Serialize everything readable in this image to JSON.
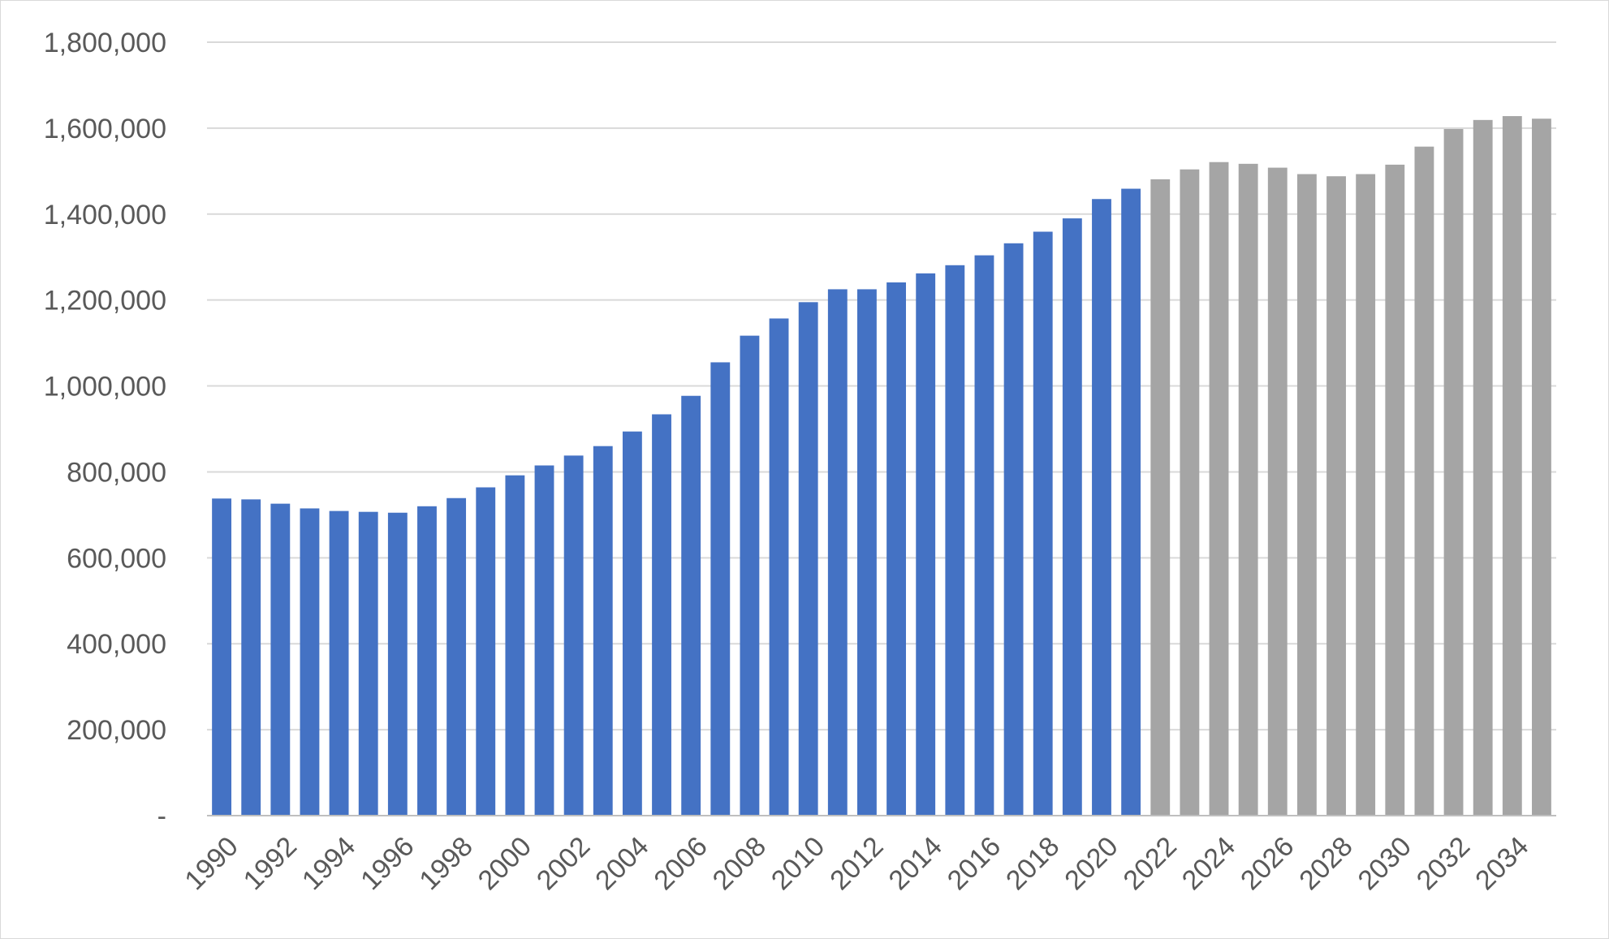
{
  "chart_data": {
    "type": "bar",
    "categories": [
      "1990",
      "1991",
      "1992",
      "1993",
      "1994",
      "1995",
      "1996",
      "1997",
      "1998",
      "1999",
      "2000",
      "2001",
      "2002",
      "2003",
      "2004",
      "2005",
      "2006",
      "2007",
      "2008",
      "2009",
      "2010",
      "2011",
      "2012",
      "2013",
      "2014",
      "2015",
      "2016",
      "2017",
      "2018",
      "2019",
      "2020",
      "2021",
      "2022",
      "2023",
      "2024",
      "2025",
      "2026",
      "2027",
      "2028",
      "2029",
      "2030",
      "2031",
      "2032",
      "2033",
      "2034",
      "2035"
    ],
    "x_tick_labels": [
      "1990",
      "1992",
      "1994",
      "1996",
      "1998",
      "2000",
      "2002",
      "2004",
      "2006",
      "2008",
      "2010",
      "2012",
      "2014",
      "2016",
      "2018",
      "2020",
      "2022",
      "2024",
      "2026",
      "2028",
      "2030",
      "2032",
      "2034"
    ],
    "values": [
      738000,
      736000,
      726000,
      715000,
      709000,
      707000,
      705000,
      720000,
      739000,
      764000,
      792000,
      815000,
      838000,
      860000,
      894000,
      934000,
      977000,
      1055000,
      1117000,
      1157000,
      1195000,
      1225000,
      1225000,
      1241000,
      1262000,
      1281000,
      1304000,
      1332000,
      1359000,
      1390000,
      1435000,
      1459000,
      1481000,
      1504000,
      1521000,
      1517000,
      1508000,
      1493000,
      1488000,
      1493000,
      1515000,
      1557000,
      1598000,
      1619000,
      1628000,
      1622000
    ],
    "series_split": {
      "actual_count": 32
    },
    "colors": {
      "actual": "#4472C4",
      "projected": "#A5A5A5"
    },
    "title": "",
    "xlabel": "",
    "ylabel": "",
    "ylim": [
      0,
      1800000
    ],
    "y_tick_labels": [
      "-",
      "200,000",
      "400,000",
      "600,000",
      "800,000",
      "1,000,000",
      "1,200,000",
      "1,400,000",
      "1,600,000",
      "1,800,000"
    ],
    "y_tick_values": [
      0,
      200000,
      400000,
      600000,
      800000,
      1000000,
      1200000,
      1400000,
      1600000,
      1800000
    ],
    "grid": true,
    "legend": "none"
  }
}
